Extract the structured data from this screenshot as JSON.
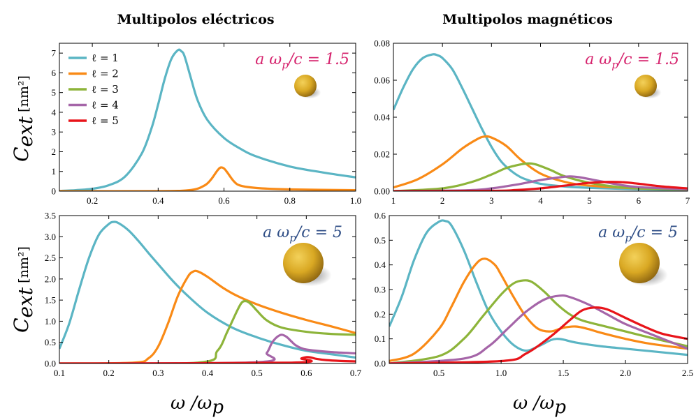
{
  "column_titles": [
    "Multipolos eléctricos",
    "Multipolos magnéticos"
  ],
  "ylabel": "C",
  "ylabel_sub": "ext",
  "ylabel_unit": "[nm²]",
  "xlabel": "ω /ω",
  "xlabel_sub": "p",
  "colors": {
    "l1": "#5bb5c4",
    "l2": "#f98a16",
    "l3": "#8db43a",
    "l4": "#a565a8",
    "l5": "#e8141a",
    "param_top": "#d6246e",
    "param_bottom": "#2f4e86",
    "sphere": "#d9a823"
  },
  "legend": [
    "ℓ = 1",
    "ℓ = 2",
    "ℓ = 3",
    "ℓ = 4",
    "ℓ = 5"
  ],
  "chart_data": [
    {
      "id": "tl",
      "type": "line",
      "annotation": "a ω_p/c = 1.5",
      "xlim": [
        0.1,
        1.0
      ],
      "ylim": [
        0,
        7.5
      ],
      "xticks": [
        "0.2",
        "0.4",
        "0.6",
        "0.8",
        "1.0"
      ],
      "xtick_values": [
        0.2,
        0.4,
        0.6,
        0.8,
        1.0
      ],
      "yticks": [
        "0",
        "1",
        "2",
        "3",
        "4",
        "5",
        "6",
        "7"
      ],
      "ytick_values": [
        0,
        1,
        2,
        3,
        4,
        5,
        6,
        7
      ],
      "series": [
        {
          "key": "l1",
          "name": "ℓ = 1",
          "x": [
            0.1,
            0.15,
            0.2,
            0.25,
            0.3,
            0.35,
            0.38,
            0.4,
            0.42,
            0.44,
            0.46,
            0.47,
            0.48,
            0.5,
            0.52,
            0.55,
            0.6,
            0.65,
            0.7,
            0.8,
            0.9,
            1.0
          ],
          "y": [
            0.01,
            0.05,
            0.12,
            0.3,
            0.75,
            1.9,
            3.2,
            4.4,
            5.7,
            6.7,
            7.15,
            7.1,
            6.85,
            5.7,
            4.6,
            3.6,
            2.7,
            2.15,
            1.75,
            1.25,
            0.95,
            0.7
          ]
        },
        {
          "key": "l2",
          "name": "ℓ = 2",
          "x": [
            0.1,
            0.4,
            0.5,
            0.54,
            0.56,
            0.58,
            0.59,
            0.6,
            0.61,
            0.63,
            0.65,
            0.7,
            0.8,
            1.0
          ],
          "y": [
            0,
            0.0,
            0.06,
            0.28,
            0.58,
            1.05,
            1.2,
            1.15,
            0.95,
            0.5,
            0.28,
            0.16,
            0.09,
            0.05
          ]
        }
      ]
    },
    {
      "id": "tr",
      "type": "line",
      "annotation": "a ω_p/c = 1.5",
      "xlim": [
        1,
        7
      ],
      "ylim": [
        0,
        0.08
      ],
      "xticks": [
        "1",
        "2",
        "3",
        "4",
        "5",
        "6",
        "7"
      ],
      "xtick_values": [
        1,
        2,
        3,
        4,
        5,
        6,
        7
      ],
      "yticks": [
        "0.00",
        "0.02",
        "0.04",
        "0.06",
        "0.08"
      ],
      "ytick_values": [
        0,
        0.02,
        0.04,
        0.06,
        0.08
      ],
      "series": [
        {
          "key": "l1",
          "name": "ℓ = 1",
          "x": [
            1,
            1.2,
            1.4,
            1.6,
            1.8,
            1.9,
            2.0,
            2.2,
            2.4,
            2.6,
            2.8,
            3.0,
            3.2,
            3.4,
            3.6,
            3.8,
            4.0,
            4.5,
            5.0,
            6.0,
            7.0
          ],
          "y": [
            0.044,
            0.056,
            0.066,
            0.072,
            0.074,
            0.0735,
            0.072,
            0.066,
            0.056,
            0.045,
            0.034,
            0.024,
            0.016,
            0.011,
            0.0075,
            0.0055,
            0.004,
            0.0025,
            0.0018,
            0.001,
            0.0006
          ]
        },
        {
          "key": "l2",
          "name": "ℓ = 2",
          "x": [
            1,
            1.5,
            2.0,
            2.4,
            2.7,
            2.85,
            3.0,
            3.3,
            3.6,
            4.0,
            4.5,
            5.0,
            6.0,
            7.0
          ],
          "y": [
            0.002,
            0.0065,
            0.0145,
            0.023,
            0.028,
            0.0295,
            0.029,
            0.0245,
            0.017,
            0.0095,
            0.005,
            0.003,
            0.0015,
            0.001
          ]
        },
        {
          "key": "l3",
          "name": "ℓ = 3",
          "x": [
            1,
            2.0,
            2.6,
            3.0,
            3.3,
            3.6,
            3.75,
            3.9,
            4.2,
            4.5,
            5.0,
            5.5,
            6.0,
            7.0
          ],
          "y": [
            0,
            0.0015,
            0.005,
            0.009,
            0.0125,
            0.0145,
            0.015,
            0.0145,
            0.0115,
            0.008,
            0.0045,
            0.0025,
            0.0015,
            0.0008
          ]
        },
        {
          "key": "l4",
          "name": "ℓ = 4",
          "x": [
            1,
            2.5,
            3.0,
            3.5,
            4.0,
            4.4,
            4.6,
            4.8,
            5.2,
            5.6,
            6.0,
            7.0
          ],
          "y": [
            0,
            0.0005,
            0.0015,
            0.0035,
            0.006,
            0.0075,
            0.008,
            0.0075,
            0.0055,
            0.0035,
            0.0022,
            0.001
          ]
        },
        {
          "key": "l5",
          "name": "ℓ = 5",
          "x": [
            1,
            3.0,
            3.5,
            4.0,
            4.5,
            5.0,
            5.4,
            5.7,
            6.0,
            6.5,
            7.0
          ],
          "y": [
            0,
            0.0002,
            0.0006,
            0.0015,
            0.003,
            0.0045,
            0.005,
            0.0048,
            0.004,
            0.0025,
            0.0015
          ]
        }
      ]
    },
    {
      "id": "bl",
      "type": "line",
      "annotation": "a ω_p/c = 5",
      "xlim": [
        0.1,
        0.7
      ],
      "ylim": [
        0,
        3.5
      ],
      "xticks": [
        "0.1",
        "0.2",
        "0.3",
        "0.4",
        "0.5",
        "0.6",
        "0.7"
      ],
      "xtick_values": [
        0.1,
        0.2,
        0.3,
        0.4,
        0.5,
        0.6,
        0.7
      ],
      "yticks": [
        "0.0",
        "0.5",
        "1.0",
        "1.5",
        "2.0",
        "2.5",
        "3.0",
        "3.5"
      ],
      "ytick_values": [
        0,
        0.5,
        1.0,
        1.5,
        2.0,
        2.5,
        3.0,
        3.5
      ],
      "series": [
        {
          "key": "l1",
          "name": "ℓ = 1",
          "x": [
            0.1,
            0.12,
            0.14,
            0.16,
            0.18,
            0.2,
            0.21,
            0.22,
            0.24,
            0.26,
            0.28,
            0.3,
            0.33,
            0.36,
            0.4,
            0.45,
            0.5,
            0.55,
            0.6,
            0.65,
            0.7
          ],
          "y": [
            0.35,
            0.95,
            1.75,
            2.5,
            3.05,
            3.3,
            3.35,
            3.32,
            3.15,
            2.9,
            2.62,
            2.35,
            1.95,
            1.6,
            1.2,
            0.85,
            0.62,
            0.44,
            0.3,
            0.22,
            0.14
          ]
        },
        {
          "key": "l2",
          "name": "ℓ = 2",
          "x": [
            0.1,
            0.25,
            0.28,
            0.3,
            0.32,
            0.34,
            0.36,
            0.37,
            0.38,
            0.4,
            0.43,
            0.46,
            0.5,
            0.55,
            0.6,
            0.65,
            0.7
          ],
          "y": [
            0,
            0.02,
            0.12,
            0.4,
            0.95,
            1.6,
            2.05,
            2.17,
            2.18,
            2.05,
            1.8,
            1.6,
            1.4,
            1.2,
            1.03,
            0.88,
            0.72
          ]
        },
        {
          "key": "l3",
          "name": "ℓ = 3",
          "x": [
            0.1,
            0.38,
            0.42,
            0.44,
            0.46,
            0.47,
            0.48,
            0.49,
            0.5,
            0.52,
            0.55,
            0.6,
            0.65,
            0.7
          ],
          "y": [
            0,
            0.02,
            0.3,
            0.75,
            1.25,
            1.45,
            1.47,
            1.38,
            1.25,
            1.02,
            0.85,
            0.75,
            0.7,
            0.68
          ]
        },
        {
          "key": "l4",
          "name": "ℓ = 4",
          "x": [
            0.1,
            0.5,
            0.52,
            0.53,
            0.54,
            0.55,
            0.56,
            0.57,
            0.58,
            0.6,
            0.65,
            0.7
          ],
          "y": [
            0,
            0.03,
            0.25,
            0.48,
            0.62,
            0.68,
            0.63,
            0.52,
            0.42,
            0.33,
            0.27,
            0.24
          ]
        },
        {
          "key": "l5",
          "name": "ℓ = 5",
          "x": [
            0.1,
            0.57,
            0.59,
            0.6,
            0.61,
            0.62,
            0.64,
            0.67,
            0.7
          ],
          "y": [
            0,
            0.02,
            0.12,
            0.15,
            0.14,
            0.11,
            0.08,
            0.06,
            0.05
          ]
        }
      ]
    },
    {
      "id": "br",
      "type": "line",
      "annotation": "a ω_p/c = 5",
      "xlim": [
        0.1,
        2.5
      ],
      "ylim": [
        0,
        0.6
      ],
      "xticks": [
        "0.5",
        "1.0",
        "1.5",
        "2.0",
        "2.5"
      ],
      "xtick_values": [
        0.5,
        1.0,
        1.5,
        2.0,
        2.5
      ],
      "yticks": [
        "0.0",
        "0.1",
        "0.2",
        "0.3",
        "0.4",
        "0.5",
        "0.6"
      ],
      "ytick_values": [
        0,
        0.1,
        0.2,
        0.3,
        0.4,
        0.5,
        0.6
      ],
      "series": [
        {
          "key": "l1",
          "name": "ℓ = 1",
          "x": [
            0.1,
            0.2,
            0.3,
            0.4,
            0.5,
            0.55,
            0.6,
            0.7,
            0.8,
            0.9,
            1.0,
            1.1,
            1.2,
            1.3,
            1.4,
            1.45,
            1.5,
            1.6,
            1.8,
            2.0,
            2.2,
            2.5
          ],
          "y": [
            0.15,
            0.27,
            0.42,
            0.53,
            0.575,
            0.578,
            0.56,
            0.46,
            0.33,
            0.21,
            0.13,
            0.075,
            0.052,
            0.07,
            0.095,
            0.1,
            0.097,
            0.085,
            0.07,
            0.06,
            0.05,
            0.035
          ]
        },
        {
          "key": "l2",
          "name": "ℓ = 2",
          "x": [
            0.1,
            0.3,
            0.5,
            0.6,
            0.7,
            0.8,
            0.87,
            0.95,
            1.0,
            1.1,
            1.2,
            1.3,
            1.4,
            1.5,
            1.6,
            1.7,
            1.8,
            2.0,
            2.2,
            2.5
          ],
          "y": [
            0.01,
            0.04,
            0.14,
            0.23,
            0.33,
            0.405,
            0.425,
            0.4,
            0.36,
            0.27,
            0.19,
            0.14,
            0.13,
            0.145,
            0.15,
            0.14,
            0.125,
            0.1,
            0.08,
            0.06
          ]
        },
        {
          "key": "l3",
          "name": "ℓ = 3",
          "x": [
            0.1,
            0.5,
            0.7,
            0.85,
            1.0,
            1.1,
            1.18,
            1.25,
            1.35,
            1.45,
            1.55,
            1.65,
            1.8,
            2.0,
            2.2,
            2.5
          ],
          "y": [
            0,
            0.03,
            0.1,
            0.19,
            0.28,
            0.325,
            0.337,
            0.33,
            0.29,
            0.24,
            0.2,
            0.175,
            0.155,
            0.13,
            0.105,
            0.07
          ]
        },
        {
          "key": "l4",
          "name": "ℓ = 4",
          "x": [
            0.1,
            0.7,
            0.9,
            1.05,
            1.2,
            1.35,
            1.47,
            1.55,
            1.7,
            1.85,
            2.0,
            2.2,
            2.5
          ],
          "y": [
            0,
            0.02,
            0.07,
            0.14,
            0.21,
            0.26,
            0.275,
            0.27,
            0.24,
            0.2,
            0.16,
            0.12,
            0.06
          ]
        },
        {
          "key": "l5",
          "name": "ℓ = 5",
          "x": [
            0.1,
            1.0,
            1.2,
            1.4,
            1.55,
            1.65,
            1.75,
            1.85,
            2.0,
            2.15,
            2.3,
            2.5
          ],
          "y": [
            0,
            0.01,
            0.04,
            0.11,
            0.175,
            0.215,
            0.227,
            0.22,
            0.185,
            0.15,
            0.12,
            0.1
          ]
        }
      ]
    }
  ]
}
